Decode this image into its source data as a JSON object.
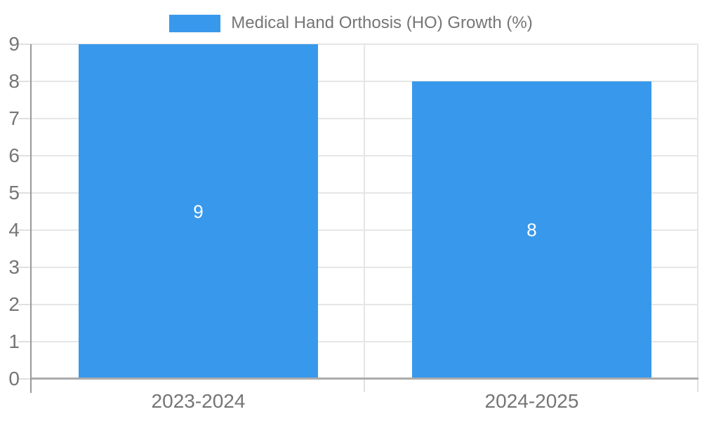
{
  "legend": {
    "label": "Medical Hand Orthosis (HO) Growth (%)"
  },
  "chart_data": {
    "type": "bar",
    "title": "Medical Hand Orthosis (HO) Growth (%)",
    "categories": [
      "2023-2024",
      "2024-2025"
    ],
    "values": [
      9,
      8
    ],
    "data_labels": [
      "9",
      "8"
    ],
    "xlabel": "",
    "ylabel": "",
    "ylim": [
      0,
      9
    ],
    "ytick_interval": 1,
    "yticks": [
      0,
      1,
      2,
      3,
      4,
      5,
      6,
      7,
      8,
      9
    ],
    "grid": true,
    "legend_position": "top-center",
    "colors": {
      "bar": "#3899ec",
      "data_label": "#ffffff",
      "axis_text": "#757575",
      "gridline": "#e6e6e6",
      "tick": "#e0e0e0",
      "y_axis_line": "#999999",
      "baseline": "#ababab",
      "background": "#ffffff"
    }
  }
}
